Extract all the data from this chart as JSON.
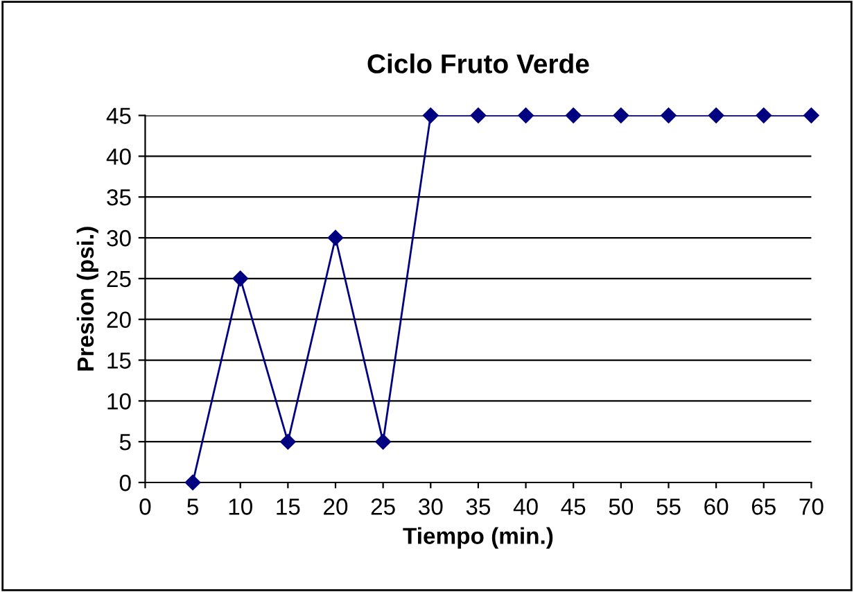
{
  "chart_data": {
    "type": "line",
    "title": "Ciclo Fruto Verde",
    "xlabel": "Tiempo (min.)",
    "ylabel": "Presion (psi.)",
    "x": [
      5,
      10,
      15,
      20,
      25,
      30,
      35,
      40,
      45,
      50,
      55,
      60,
      65,
      70
    ],
    "series": [
      {
        "color": "#000080",
        "values": [
          0,
          25,
          5,
          30,
          5,
          45,
          45,
          45,
          45,
          45,
          45,
          45,
          45,
          45
        ]
      }
    ],
    "xlim": [
      0,
      70
    ],
    "xticks": [
      0,
      5,
      10,
      15,
      20,
      25,
      30,
      35,
      40,
      45,
      50,
      55,
      60,
      65,
      70
    ],
    "ylim": [
      0,
      45
    ],
    "yticks": [
      0,
      5,
      10,
      15,
      20,
      25,
      30,
      35,
      40,
      45
    ],
    "grid": "y",
    "marker": "diamond",
    "line_style": "solid",
    "legend": false
  }
}
